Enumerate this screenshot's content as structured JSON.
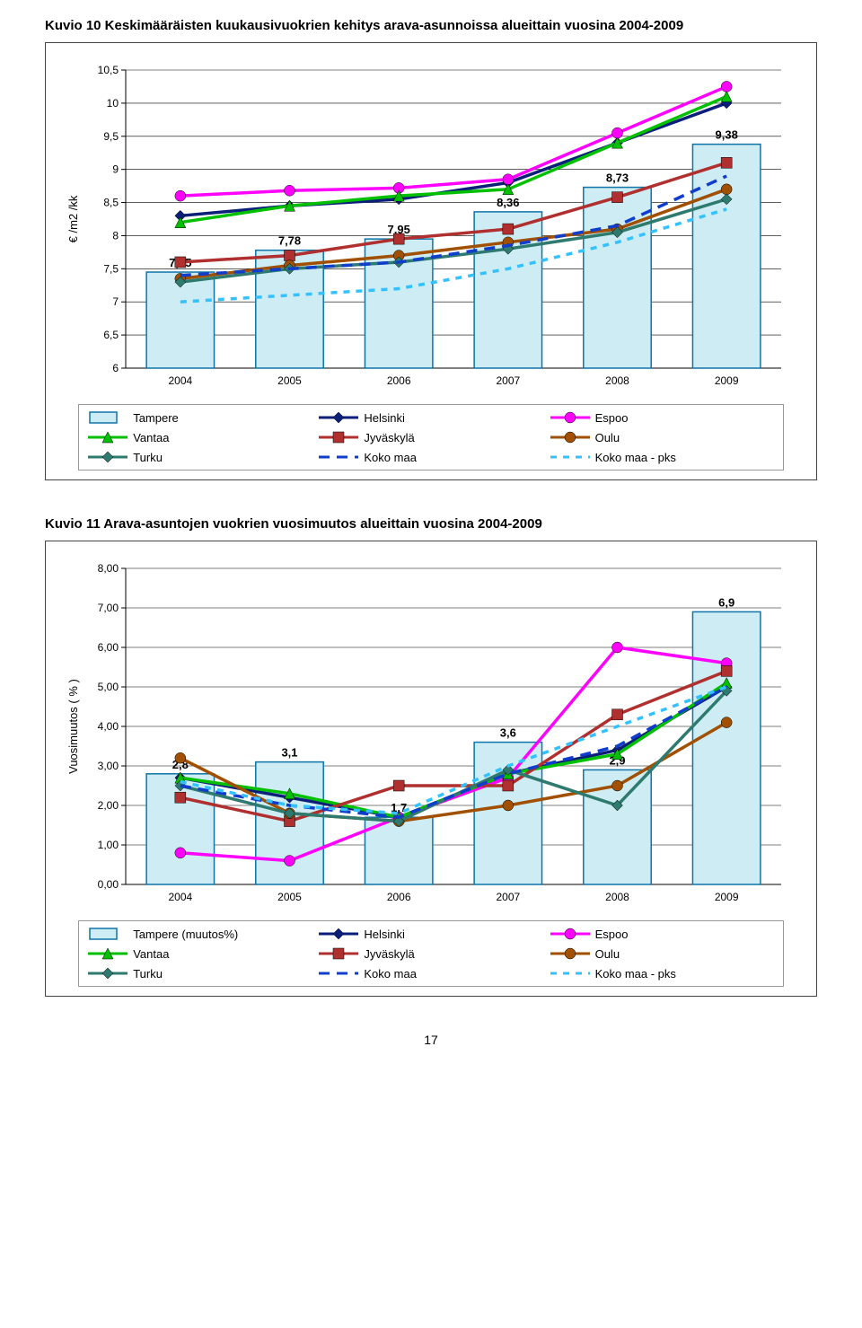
{
  "page_number": "17",
  "chart1": {
    "title": "Kuvio 10 Keskimääräisten kuukausivuokrien kehitys arava-asunnoissa alueittain vuosina 2004-2009",
    "type": "line+bar",
    "y_label": "€ /m2 /kk",
    "ylim": [
      6,
      10.5
    ],
    "ytick_step": 0.5,
    "decimal_sep": ",",
    "categories": [
      "2004",
      "2005",
      "2006",
      "2007",
      "2008",
      "2009"
    ],
    "bar_series": {
      "name": "Tampere",
      "values": [
        7.45,
        7.78,
        7.95,
        8.36,
        8.73,
        9.38
      ],
      "show_labels": true,
      "marker": "bar",
      "fill": "#cdecf3",
      "border": "#0f74a8"
    },
    "series": [
      {
        "name": "Tampere",
        "marker": "bar",
        "fill": "#cdecf3",
        "border": "#0f74a8"
      },
      {
        "name": "Helsinki",
        "values": [
          8.3,
          8.45,
          8.55,
          8.8,
          9.4,
          10.0
        ],
        "color": "#0a1e7a",
        "marker": "diamond"
      },
      {
        "name": "Espoo",
        "values": [
          8.6,
          8.68,
          8.72,
          8.85,
          9.55,
          10.25
        ],
        "color": "#ff00ff",
        "marker": "circle"
      },
      {
        "name": "Vantaa",
        "values": [
          8.2,
          8.45,
          8.6,
          8.7,
          9.4,
          10.1
        ],
        "color": "#00c000",
        "marker": "triangle"
      },
      {
        "name": "Jyväskylä",
        "values": [
          7.6,
          7.7,
          7.95,
          8.1,
          8.58,
          9.1
        ],
        "color": "#b03030",
        "marker": "square"
      },
      {
        "name": "Oulu",
        "values": [
          7.35,
          7.55,
          7.7,
          7.9,
          8.1,
          8.7
        ],
        "color": "#a05000",
        "marker": "circle"
      },
      {
        "name": "Turku",
        "values": [
          7.3,
          7.5,
          7.6,
          7.8,
          8.05,
          8.55
        ],
        "color": "#2e7a6e",
        "marker": "diamond"
      },
      {
        "name": "Koko maa",
        "values": [
          7.4,
          7.5,
          7.6,
          7.85,
          8.15,
          8.9
        ],
        "color": "#103dcc",
        "dash": "12,8",
        "marker": "none"
      },
      {
        "name": "Koko maa - pks",
        "values": [
          7.0,
          7.1,
          7.2,
          7.5,
          7.9,
          8.4
        ],
        "color": "#33c2ff",
        "dash": "7,7",
        "marker": "none"
      }
    ],
    "axis_color": "#000000",
    "grid_color": "#000000",
    "background_color": "#ffffff",
    "title_fontsize": 15,
    "label_fontsize": 13,
    "tick_fontsize": 12
  },
  "chart2": {
    "title": "Kuvio 11 Arava-asuntojen vuokrien vuosimuutos alueittain vuosina 2004-2009",
    "type": "line+bar",
    "y_label": "Vuosimuutos ( % )",
    "ylim": [
      0,
      8
    ],
    "ytick_step": 1,
    "decimal_sep": ",",
    "y_format": "0,00",
    "categories": [
      "2004",
      "2005",
      "2006",
      "2007",
      "2008",
      "2009"
    ],
    "bar_series": {
      "name": "Tampere (muutos%)",
      "values": [
        2.8,
        3.1,
        1.7,
        3.6,
        2.9,
        6.9
      ],
      "show_labels": true,
      "marker": "bar",
      "fill": "#cdecf3",
      "border": "#0f74a8"
    },
    "series": [
      {
        "name": "Tampere (muutos%)",
        "marker": "bar",
        "fill": "#cdecf3",
        "border": "#0f74a8"
      },
      {
        "name": "Helsinki",
        "values": [
          2.7,
          2.2,
          1.7,
          2.8,
          3.4,
          5.0
        ],
        "color": "#0a1e7a",
        "marker": "diamond"
      },
      {
        "name": "Espoo",
        "values": [
          0.8,
          0.6,
          1.7,
          2.7,
          6.0,
          5.6
        ],
        "color": "#ff00ff",
        "marker": "circle"
      },
      {
        "name": "Vantaa",
        "values": [
          2.7,
          2.3,
          1.7,
          2.8,
          3.3,
          5.1
        ],
        "color": "#00c000",
        "marker": "triangle"
      },
      {
        "name": "Jyväskylä",
        "values": [
          2.2,
          1.6,
          2.5,
          2.5,
          4.3,
          5.4
        ],
        "color": "#b03030",
        "marker": "square"
      },
      {
        "name": "Oulu",
        "values": [
          3.2,
          1.8,
          1.6,
          2.0,
          2.5,
          4.1
        ],
        "color": "#a05000",
        "marker": "circle"
      },
      {
        "name": "Turku",
        "values": [
          2.5,
          1.8,
          1.6,
          2.9,
          2.0,
          4.9
        ],
        "color": "#2e7a6e",
        "marker": "diamond"
      },
      {
        "name": "Koko maa",
        "values": [
          2.5,
          2.0,
          1.7,
          2.8,
          3.5,
          5.0
        ],
        "color": "#103dcc",
        "dash": "12,8",
        "marker": "none"
      },
      {
        "name": "Koko maa - pks",
        "values": [
          2.6,
          2.0,
          1.8,
          3.0,
          4.0,
          5.0
        ],
        "color": "#33c2ff",
        "dash": "7,7",
        "marker": "none"
      }
    ],
    "axis_color": "#000000",
    "grid_color": "#000000",
    "background_color": "#ffffff",
    "title_fontsize": 15,
    "label_fontsize": 13,
    "tick_fontsize": 12
  }
}
